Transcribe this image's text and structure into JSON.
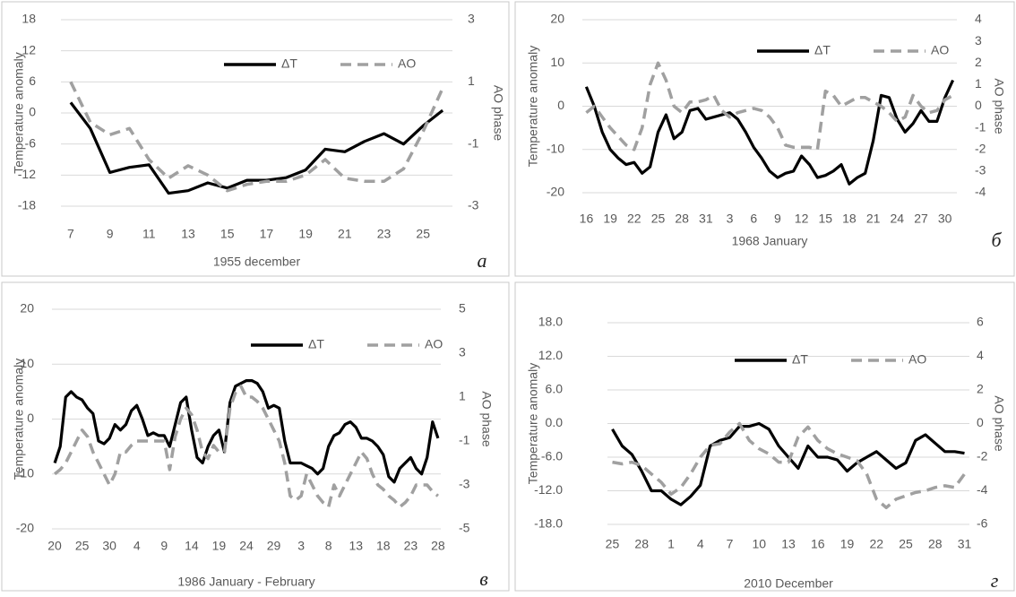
{
  "chart_data": [
    {
      "type": "line",
      "x_label": "1955 december",
      "y_label": "Temperature anomaly",
      "y2_label": "AO phase",
      "panel_label": "а",
      "legend": "upper right",
      "categories": [
        "7",
        null,
        "9",
        null,
        "11",
        null,
        "13",
        null,
        "15",
        null,
        "17",
        null,
        "19",
        null,
        "21",
        null,
        "23",
        null,
        "25",
        null
      ],
      "ylim": [
        -18,
        18
      ],
      "yticks": [
        -18,
        -12,
        -6,
        0,
        6,
        12,
        18
      ],
      "grid": true,
      "y2lim": [
        -3,
        3
      ],
      "y2ticks": [
        -3,
        -1,
        1,
        3
      ],
      "series": [
        {
          "name": "ΔT",
          "color": "#000000",
          "line_style": "solid",
          "values": [
            2,
            -3,
            -11.5,
            -10.5,
            -10,
            -15.5,
            -15,
            -13.5,
            -14.5,
            -13,
            -13,
            -12.5,
            -11,
            -7,
            -7.5,
            -5.5,
            -4,
            -6,
            -2.5,
            0.5
          ]
        },
        {
          "name": "AO",
          "color": "#a0a0a0",
          "line_style": "dashed",
          "axis": "y2",
          "values": [
            1,
            -0.3,
            -0.7,
            -0.5,
            -1.5,
            -2.1,
            -1.7,
            -2,
            -2.5,
            -2.3,
            -2.2,
            -2.2,
            -2,
            -1.5,
            -2.1,
            -2.2,
            -2.2,
            -1.8,
            -0.6,
            0.8
          ]
        }
      ]
    },
    {
      "type": "line",
      "x_label": "1968 January",
      "y_label": "Temperature anomaly",
      "y2_label": "AO phase",
      "panel_label": "б",
      "legend": "upper right",
      "categories": [
        "16",
        null,
        null,
        "19",
        null,
        null,
        "22",
        null,
        null,
        "25",
        null,
        null,
        "28",
        null,
        null,
        "31",
        null,
        null,
        "3",
        null,
        null,
        "6",
        null,
        null,
        "9",
        null,
        null,
        "12",
        null,
        null,
        "15",
        null,
        null,
        "18",
        null,
        null,
        "21",
        null,
        null,
        "24",
        null,
        null,
        "27",
        null,
        null,
        "30",
        null
      ],
      "ylim": [
        -20,
        20
      ],
      "yticks": [
        -20,
        -10,
        0,
        10,
        20
      ],
      "grid": true,
      "y2lim": [
        -4,
        4
      ],
      "y2ticks": [
        -4,
        -3,
        -2,
        -1,
        0,
        1,
        2,
        3,
        4
      ],
      "series": [
        {
          "name": "ΔT",
          "color": "#000000",
          "line_style": "solid",
          "values": [
            4.5,
            0,
            -6,
            -10,
            -12,
            -13.5,
            -13,
            -15.5,
            -14,
            -6,
            -2,
            -7.5,
            -6,
            -1,
            -0.5,
            -3,
            -2.5,
            -2,
            -1.5,
            -3,
            -6,
            -9.5,
            -12,
            -15,
            -16.5,
            -15.5,
            -15,
            -11.5,
            -13.5,
            -16.5,
            -16,
            -15,
            -13.5,
            -18,
            -16.5,
            -15.5,
            -8,
            2.5,
            2,
            -3,
            -6,
            -4,
            -1,
            -3.5,
            -3.5,
            2,
            6
          ]
        },
        {
          "name": "AO",
          "color": "#a0a0a0",
          "line_style": "dashed",
          "axis": "y2",
          "values": [
            -0.3,
            0,
            -0.5,
            -1,
            -1.4,
            -1.8,
            -2,
            -1,
            1,
            2,
            1.2,
            0,
            -0.3,
            0.2,
            0.2,
            0.3,
            0.5,
            -0.2,
            -0.5,
            -0.3,
            -0.2,
            -0.1,
            -0.2,
            -0.5,
            -1,
            -1.8,
            -1.9,
            -1.9,
            -1.9,
            -2,
            0.7,
            0.5,
            0,
            0.2,
            0.4,
            0.4,
            0.2,
            0,
            -0.3,
            -0.7,
            -0.5,
            0.5,
            0,
            -0.3,
            -0.2,
            0.3,
            0.5
          ]
        }
      ]
    },
    {
      "type": "line",
      "x_label": "1986 January - February",
      "y_label": "Temperature anomaly",
      "y2_label": "AO phase",
      "panel_label": "в",
      "legend": "upper right",
      "categories": [
        "20",
        null,
        null,
        null,
        null,
        "25",
        null,
        null,
        null,
        null,
        "30",
        null,
        null,
        null,
        null,
        "4",
        null,
        null,
        null,
        null,
        "9",
        null,
        null,
        null,
        null,
        "14",
        null,
        null,
        null,
        null,
        "19",
        null,
        null,
        null,
        null,
        "24",
        null,
        null,
        null,
        null,
        "29",
        null,
        null,
        null,
        null,
        "3",
        null,
        null,
        null,
        null,
        "8",
        null,
        null,
        null,
        null,
        "13",
        null,
        null,
        null,
        null,
        "18",
        null,
        null,
        null,
        null,
        "23",
        null,
        null,
        null,
        null,
        "28"
      ],
      "ylim": [
        -20,
        20
      ],
      "yticks": [
        -20,
        -10,
        0,
        10,
        20
      ],
      "grid": true,
      "y2lim": [
        -5,
        5
      ],
      "y2ticks": [
        -5,
        -3,
        -1,
        1,
        3,
        5
      ],
      "series": [
        {
          "name": "ΔT",
          "color": "#000000",
          "line_style": "solid",
          "values": [
            -8,
            -5,
            4,
            5,
            4,
            3.5,
            2,
            1,
            -4,
            -4.5,
            -3.5,
            -1,
            -2,
            -1,
            1.5,
            2.5,
            0,
            -3,
            -2.5,
            -3,
            -3,
            -5,
            -1,
            3,
            4,
            -2,
            -7,
            -8,
            -5,
            -3,
            -2,
            -6,
            3,
            6,
            6.5,
            7,
            7,
            6.5,
            5,
            2,
            2.5,
            2,
            -4,
            -8,
            -8,
            -8,
            -8.5,
            -9,
            -10,
            -9,
            -5,
            -3,
            -2.5,
            -1,
            -0.5,
            -1.5,
            -3.5,
            -3.5,
            -4,
            -5,
            -6.5,
            -10.5,
            -11.5,
            -9,
            -8,
            -7,
            -9,
            -10,
            -7,
            -0.5,
            -3.5
          ]
        },
        {
          "name": "AO",
          "color": "#a0a0a0",
          "line_style": "dashed",
          "axis": "y2",
          "values": [
            -2.5,
            -2.3,
            -2,
            -1.5,
            -1,
            -0.5,
            -0.8,
            -1.5,
            -2,
            -2.5,
            -3,
            -2.5,
            -1.5,
            -1.5,
            -1.2,
            -1,
            -1,
            -1,
            -1,
            -1,
            -1,
            -2.3,
            -0.8,
            0,
            0.5,
            0.2,
            -0.5,
            -1.5,
            -1.8,
            -1.2,
            -1.5,
            -1.5,
            0.5,
            1.2,
            1.5,
            1,
            1,
            0.8,
            0.5,
            0,
            -0.5,
            -1,
            -2,
            -3.5,
            -3.7,
            -3.5,
            -2.5,
            -3,
            -3.5,
            -3.8,
            -4,
            -3,
            -3.5,
            -3,
            -2.5,
            -2,
            -1.5,
            -1.8,
            -2.5,
            -3,
            -3.2,
            -3.5,
            -3.7,
            -4,
            -3.8,
            -3.5,
            -3,
            -3,
            -3,
            -3.3,
            -3.5
          ]
        }
      ]
    },
    {
      "type": "line",
      "x_label": "2010 December",
      "y_label": "Temperature anomaly",
      "y2_label": "AO phase",
      "panel_label": "г",
      "legend": "upper right",
      "categories": [
        "25",
        null,
        null,
        "28",
        null,
        null,
        "1",
        null,
        null,
        "4",
        null,
        null,
        "7",
        null,
        null,
        "10",
        null,
        null,
        "13",
        null,
        null,
        "16",
        null,
        null,
        "19",
        null,
        null,
        "22",
        null,
        null,
        "25",
        null,
        null,
        "28",
        null,
        null,
        "31"
      ],
      "ylim": [
        -18,
        18
      ],
      "yticks": [
        {
          "value": -18,
          "label": "-18.0"
        },
        {
          "value": -12,
          "label": "-12.0"
        },
        {
          "value": -6,
          "label": "-6.0"
        },
        {
          "value": 0,
          "label": "0.0"
        },
        {
          "value": 6,
          "label": "6.0"
        },
        {
          "value": 12,
          "label": "12.0"
        },
        {
          "value": 18,
          "label": "18.0"
        }
      ],
      "grid": true,
      "y2lim": [
        -6,
        6
      ],
      "y2ticks": [
        -6,
        -4,
        -2,
        0,
        2,
        4,
        6
      ],
      "series": [
        {
          "name": "ΔT",
          "color": "#000000",
          "line_style": "solid",
          "values": [
            -1,
            -4,
            -5.5,
            -8.5,
            -12,
            -12,
            -13.5,
            -14.5,
            -13,
            -11,
            -4,
            -3,
            -2.5,
            -0.5,
            -0.5,
            0,
            -1,
            -4,
            -6,
            -8,
            -4,
            -6,
            -6,
            -6.5,
            -8.5,
            -7,
            -6,
            -5,
            -6.5,
            -8,
            -7,
            -3,
            -2,
            -3.5,
            -5,
            -5,
            -5.3
          ]
        },
        {
          "name": "AO",
          "color": "#a0a0a0",
          "line_style": "dashed",
          "axis": "y2",
          "values": [
            -2.3,
            -2.4,
            -2.3,
            -2.5,
            -3,
            -3.5,
            -4.2,
            -3.8,
            -3,
            -2,
            -1.3,
            -1.2,
            -0.5,
            0,
            -1,
            -1.5,
            -1.8,
            -2.3,
            -2.3,
            -0.8,
            -0.2,
            -1,
            -1.5,
            -1.8,
            -2,
            -2.2,
            -3,
            -4.5,
            -5,
            -4.5,
            -4.3,
            -4.1,
            -4,
            -3.8,
            -3.7,
            -3.8,
            -3
          ]
        }
      ]
    }
  ]
}
